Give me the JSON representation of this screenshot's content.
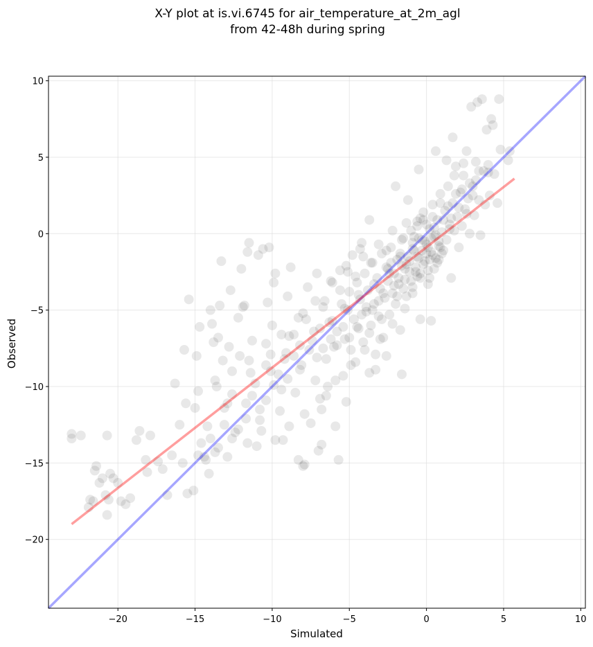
{
  "chart_data": {
    "type": "scatter",
    "title_lines": [
      "X-Y plot at is.vi.6745 for air_temperature_at_2m_agl",
      "from 42-48h during spring"
    ],
    "xlabel": "Simulated",
    "ylabel": "Observed",
    "xlim": [
      -24.5,
      10.3
    ],
    "ylim": [
      -24.5,
      10.3
    ],
    "xticks": [
      -20,
      -15,
      -10,
      -5,
      0,
      5,
      10
    ],
    "yticks": [
      -20,
      -15,
      -10,
      -5,
      0,
      5,
      10
    ],
    "xtick_labels": [
      "−20",
      "−15",
      "−10",
      "−5",
      "0",
      "5",
      "10"
    ],
    "ytick_labels": [
      "−20",
      "−15",
      "−10",
      "−5",
      "0",
      "5",
      "10"
    ],
    "grid": true,
    "colors": {
      "points": "#000000",
      "identity_line": "#0000ff",
      "fit_line": "#ff0000",
      "grid": "#d9d9d9"
    },
    "identity_line": {
      "x": [
        -24.5,
        10.3
      ],
      "y": [
        -24.5,
        10.3
      ]
    },
    "fit_line": {
      "x": [
        -23.0,
        5.7
      ],
      "y": [
        -19.0,
        3.6
      ]
    },
    "points": [
      [
        -23.0,
        -13.1
      ],
      [
        -23.0,
        -13.4
      ],
      [
        -22.4,
        -13.2
      ],
      [
        -21.8,
        -17.4
      ],
      [
        -21.6,
        -17.5
      ],
      [
        -21.9,
        -17.9
      ],
      [
        -21.4,
        -15.2
      ],
      [
        -21.5,
        -15.5
      ],
      [
        -21.2,
        -16.3
      ],
      [
        -21.0,
        -16.0
      ],
      [
        -20.8,
        -17.1
      ],
      [
        -20.6,
        -17.4
      ],
      [
        -20.7,
        -18.4
      ],
      [
        -20.7,
        -13.2
      ],
      [
        -20.5,
        -15.7
      ],
      [
        -20.3,
        -16.0
      ],
      [
        -20.0,
        -16.3
      ],
      [
        -19.8,
        -17.5
      ],
      [
        -19.5,
        -17.7
      ],
      [
        -19.2,
        -17.3
      ],
      [
        -18.8,
        -13.5
      ],
      [
        -18.6,
        -12.9
      ],
      [
        -18.2,
        -14.8
      ],
      [
        -18.1,
        -15.6
      ],
      [
        -17.9,
        -13.2
      ],
      [
        -17.4,
        -14.9
      ],
      [
        -17.1,
        -15.4
      ],
      [
        -16.8,
        -17.1
      ],
      [
        -16.5,
        -14.5
      ],
      [
        -16.3,
        -9.8
      ],
      [
        -16.0,
        -12.5
      ],
      [
        -15.8,
        -15.0
      ],
      [
        -15.7,
        -7.6
      ],
      [
        -15.6,
        -11.1
      ],
      [
        -15.5,
        -17.0
      ],
      [
        -15.4,
        -4.3
      ],
      [
        -15.1,
        -16.8
      ],
      [
        -15.0,
        -11.4
      ],
      [
        -14.9,
        -8.0
      ],
      [
        -14.8,
        -14.5
      ],
      [
        -14.7,
        -6.1
      ],
      [
        -14.6,
        -13.7
      ],
      [
        -14.3,
        -14.8
      ],
      [
        -14.2,
        -12.6
      ],
      [
        -14.1,
        -15.7
      ],
      [
        -14.0,
        -5.0
      ],
      [
        -13.9,
        -5.9
      ],
      [
        -13.8,
        -7.1
      ],
      [
        -13.7,
        -14.3
      ],
      [
        -13.6,
        -10.0
      ],
      [
        -13.5,
        -6.8
      ],
      [
        -13.4,
        -4.7
      ],
      [
        -13.2,
        -8.3
      ],
      [
        -13.1,
        -11.4
      ],
      [
        -12.9,
        -14.6
      ],
      [
        -12.8,
        -7.4
      ],
      [
        -12.7,
        -3.7
      ],
      [
        -12.6,
        -10.5
      ],
      [
        -12.4,
        -13.0
      ],
      [
        -12.2,
        -5.5
      ],
      [
        -12.1,
        -8.0
      ],
      [
        -11.9,
        -4.8
      ],
      [
        -11.7,
        -11.1
      ],
      [
        -11.6,
        -1.2
      ],
      [
        -11.5,
        -0.6
      ],
      [
        -11.3,
        -7.0
      ],
      [
        -11.1,
        -9.8
      ],
      [
        -11.0,
        -13.9
      ],
      [
        -10.8,
        -12.2
      ],
      [
        -10.6,
        -1.0
      ],
      [
        -10.4,
        -8.6
      ],
      [
        -10.3,
        -4.5
      ],
      [
        -10.2,
        -0.9
      ],
      [
        -10.0,
        -6.0
      ],
      [
        -9.8,
        -2.6
      ],
      [
        -9.6,
        -9.2
      ],
      [
        -9.5,
        -11.6
      ],
      [
        -9.3,
        -13.5
      ],
      [
        -9.1,
        -7.8
      ],
      [
        -9.0,
        -4.1
      ],
      [
        -8.8,
        -2.2
      ],
      [
        -8.6,
        -6.6
      ],
      [
        -8.5,
        -10.4
      ],
      [
        -8.3,
        -14.8
      ],
      [
        -8.2,
        -8.9
      ],
      [
        -8.0,
        -5.2
      ],
      [
        -7.9,
        -15.1
      ],
      [
        -7.7,
        -3.5
      ],
      [
        -7.5,
        -12.4
      ],
      [
        -7.4,
        -7.0
      ],
      [
        -7.2,
        -9.6
      ],
      [
        -7.1,
        -2.6
      ],
      [
        -7.0,
        -14.2
      ],
      [
        -6.9,
        -6.2
      ],
      [
        -6.8,
        -11.5
      ],
      [
        -6.6,
        -4.4
      ],
      [
        -6.5,
        -8.2
      ],
      [
        -6.4,
        -10.0
      ],
      [
        -6.2,
        -3.1
      ],
      [
        -6.1,
        -5.7
      ],
      [
        -6.0,
        -7.4
      ],
      [
        -5.9,
        -12.6
      ],
      [
        -5.8,
        -6.4
      ],
      [
        -5.7,
        -14.8
      ],
      [
        -5.6,
        -2.4
      ],
      [
        -5.5,
        -4.6
      ],
      [
        -5.4,
        -9.3
      ],
      [
        -5.3,
        -6.9
      ],
      [
        -5.2,
        -11.0
      ],
      [
        -5.1,
        -5.0
      ],
      [
        -5.0,
        -3.8
      ],
      [
        -4.9,
        -7.6
      ],
      [
        -4.8,
        -1.4
      ],
      [
        -4.7,
        -5.6
      ],
      [
        -4.6,
        -8.4
      ],
      [
        -4.5,
        -3.2
      ],
      [
        -4.4,
        -6.2
      ],
      [
        -4.3,
        -4.3
      ],
      [
        -4.2,
        -0.6
      ],
      [
        -4.1,
        -7.1
      ],
      [
        -4.0,
        -2.6
      ],
      [
        -3.9,
        -5.1
      ],
      [
        -3.8,
        -3.7
      ],
      [
        -3.7,
        -9.1
      ],
      [
        -3.6,
        -6.0
      ],
      [
        -3.5,
        -1.9
      ],
      [
        -3.4,
        -4.6
      ],
      [
        -3.3,
        -7.9
      ],
      [
        -3.2,
        -2.9
      ],
      [
        -3.1,
        -5.4
      ],
      [
        -3.0,
        -3.6
      ],
      [
        -2.9,
        -1.3
      ],
      [
        -2.8,
        -6.8
      ],
      [
        -2.7,
        -4.2
      ],
      [
        -2.6,
        -2.2
      ],
      [
        -2.5,
        -3.1
      ],
      [
        -2.4,
        -5.3
      ],
      [
        -2.3,
        -0.9
      ],
      [
        -2.2,
        -3.9
      ],
      [
        -2.1,
        -2.6
      ],
      [
        -2.0,
        -4.6
      ],
      [
        -1.9,
        -1.7
      ],
      [
        -1.8,
        -3.3
      ],
      [
        -1.7,
        -6.3
      ],
      [
        -1.6,
        -2.1
      ],
      [
        -1.5,
        -0.3
      ],
      [
        -1.4,
        -3.0
      ],
      [
        -1.3,
        -4.1
      ],
      [
        -1.2,
        -1.5
      ],
      [
        -1.1,
        -2.5
      ],
      [
        -1.0,
        0.2
      ],
      [
        -0.9,
        -3.5
      ],
      [
        -0.8,
        -1.1
      ],
      [
        -0.7,
        -2.2
      ],
      [
        -0.6,
        0.8
      ],
      [
        -0.5,
        -1.6
      ],
      [
        -0.4,
        -2.9
      ],
      [
        -0.3,
        -0.4
      ],
      [
        -0.2,
        1.4
      ],
      [
        -0.1,
        -1.8
      ],
      [
        0.0,
        -0.7
      ],
      [
        0.1,
        -2.4
      ],
      [
        0.2,
        0.3
      ],
      [
        0.3,
        -1.2
      ],
      [
        0.4,
        1.9
      ],
      [
        0.5,
        -0.2
      ],
      [
        0.6,
        -1.6
      ],
      [
        0.7,
        0.9
      ],
      [
        0.8,
        -0.8
      ],
      [
        0.9,
        2.6
      ],
      [
        1.0,
        0.1
      ],
      [
        1.1,
        -1.1
      ],
      [
        1.2,
        1.5
      ],
      [
        1.3,
        -0.4
      ],
      [
        1.4,
        3.1
      ],
      [
        1.5,
        0.6
      ],
      [
        1.6,
        -2.9
      ],
      [
        1.7,
        2.0
      ],
      [
        1.8,
        0.2
      ],
      [
        1.9,
        4.4
      ],
      [
        2.0,
        1.1
      ],
      [
        2.1,
        -0.9
      ],
      [
        2.2,
        2.7
      ],
      [
        2.3,
        0.5
      ],
      [
        2.4,
        3.8
      ],
      [
        2.5,
        1.6
      ],
      [
        2.6,
        5.4
      ],
      [
        2.7,
        2.3
      ],
      [
        2.8,
        0.0
      ],
      [
        2.9,
        8.3
      ],
      [
        3.0,
        3.1
      ],
      [
        3.1,
        1.2
      ],
      [
        3.2,
        4.7
      ],
      [
        3.3,
        8.6
      ],
      [
        3.4,
        2.2
      ],
      [
        3.5,
        -0.1
      ],
      [
        3.6,
        8.8
      ],
      [
        3.7,
        4.1
      ],
      [
        3.8,
        1.9
      ],
      [
        3.9,
        6.8
      ],
      [
        4.0,
        4.5
      ],
      [
        4.1,
        2.5
      ],
      [
        4.2,
        7.5
      ],
      [
        4.3,
        7.1
      ],
      [
        4.4,
        3.9
      ],
      [
        4.6,
        2.0
      ],
      [
        4.7,
        8.8
      ],
      [
        4.8,
        5.5
      ],
      [
        5.3,
        4.8
      ],
      [
        5.4,
        5.4
      ],
      [
        -0.4,
        -5.6
      ],
      [
        0.3,
        -5.7
      ],
      [
        -1.6,
        -9.2
      ],
      [
        -2.6,
        -8.0
      ],
      [
        -3.3,
        -8.9
      ],
      [
        -6.5,
        -10.6
      ],
      [
        -8.0,
        -15.2
      ],
      [
        -6.8,
        -13.8
      ],
      [
        -9.9,
        -3.2
      ],
      [
        -11.8,
        -4.7
      ],
      [
        -12.0,
        -2.3
      ],
      [
        -13.3,
        -1.8
      ],
      [
        -10.9,
        -1.4
      ],
      [
        -5.2,
        -2.1
      ],
      [
        -2.0,
        3.1
      ],
      [
        -1.2,
        2.2
      ],
      [
        -0.5,
        4.2
      ],
      [
        0.6,
        5.4
      ],
      [
        1.3,
        4.8
      ],
      [
        1.7,
        6.3
      ],
      [
        -3.7,
        0.9
      ],
      [
        -4.3,
        -1.0
      ],
      [
        -0.5,
        -0.3
      ],
      [
        0.1,
        -0.9
      ],
      [
        0.4,
        -1.4
      ],
      [
        0.8,
        -0.5
      ],
      [
        -0.2,
        -2.0
      ],
      [
        0.5,
        -2.3
      ],
      [
        -0.9,
        -1.0
      ],
      [
        -0.7,
        -2.5
      ],
      [
        0.2,
        -1.7
      ],
      [
        -0.3,
        -1.1
      ],
      [
        0.7,
        -1.9
      ],
      [
        1.0,
        -1.3
      ],
      [
        -1.1,
        -1.8
      ],
      [
        -1.4,
        -2.3
      ],
      [
        0.6,
        -0.1
      ],
      [
        -0.1,
        -0.5
      ],
      [
        -1.8,
        -2.9
      ],
      [
        -2.1,
        -3.4
      ],
      [
        -1.5,
        -3.6
      ],
      [
        -2.4,
        -2.6
      ],
      [
        -2.8,
        -3.9
      ],
      [
        -1.9,
        -4.1
      ],
      [
        -1.0,
        -3.1
      ],
      [
        -0.6,
        -2.8
      ],
      [
        -3.1,
        -4.4
      ],
      [
        -3.5,
        -5.0
      ],
      [
        -2.9,
        -5.6
      ],
      [
        -3.9,
        -4.8
      ],
      [
        -4.2,
        -5.3
      ],
      [
        -4.5,
        -6.1
      ],
      [
        -3.7,
        -6.5
      ],
      [
        -5.0,
        -6.8
      ],
      [
        -5.4,
        -6.1
      ],
      [
        -5.8,
        -7.3
      ],
      [
        -6.2,
        -6.9
      ],
      [
        -6.7,
        -7.5
      ],
      [
        -7.1,
        -8.1
      ],
      [
        -7.6,
        -7.6
      ],
      [
        -8.1,
        -8.6
      ],
      [
        -8.6,
        -8.0
      ],
      [
        -9.0,
        -9.5
      ],
      [
        -9.4,
        -10.2
      ],
      [
        -9.9,
        -9.9
      ],
      [
        -10.4,
        -10.9
      ],
      [
        -10.8,
        -11.5
      ],
      [
        -11.3,
        -10.6
      ],
      [
        -11.7,
        -12.1
      ],
      [
        -12.2,
        -12.8
      ],
      [
        -12.6,
        -13.4
      ],
      [
        -13.1,
        -12.5
      ],
      [
        -13.5,
        -14.0
      ],
      [
        -14.0,
        -13.4
      ],
      [
        -14.4,
        -14.6
      ],
      [
        -12.9,
        -11.1
      ],
      [
        -11.4,
        -9.1
      ],
      [
        -10.1,
        -7.9
      ],
      [
        -8.9,
        -6.7
      ],
      [
        -7.8,
        -5.6
      ],
      [
        -6.7,
        -4.8
      ],
      [
        -5.6,
        -3.7
      ],
      [
        -4.6,
        -2.8
      ],
      [
        -3.6,
        -1.9
      ],
      [
        -2.6,
        -1.1
      ],
      [
        -1.6,
        -0.4
      ],
      [
        -0.6,
        0.5
      ],
      [
        0.4,
        1.1
      ],
      [
        1.4,
        1.8
      ],
      [
        2.3,
        2.9
      ],
      [
        3.2,
        3.5
      ],
      [
        4.0,
        4.0
      ],
      [
        1.9,
        2.6
      ],
      [
        2.8,
        3.3
      ],
      [
        1.1,
        0.9
      ],
      [
        0.0,
        0.6
      ],
      [
        -0.8,
        -0.2
      ],
      [
        1.6,
        1.0
      ],
      [
        2.1,
        1.7
      ],
      [
        0.9,
        2.0
      ],
      [
        -0.4,
        1.0
      ],
      [
        1.8,
        3.8
      ],
      [
        3.0,
        2.5
      ],
      [
        2.6,
        1.3
      ],
      [
        3.4,
        4.1
      ],
      [
        2.4,
        4.6
      ],
      [
        -1.4,
        -4.9
      ],
      [
        -2.2,
        -5.9
      ],
      [
        -3.0,
        -6.9
      ],
      [
        -4.0,
        -7.6
      ],
      [
        -4.9,
        -8.6
      ],
      [
        -5.9,
        -9.6
      ],
      [
        -6.9,
        -10.8
      ],
      [
        -7.9,
        -11.8
      ],
      [
        -8.9,
        -12.6
      ],
      [
        -9.8,
        -13.5
      ],
      [
        -10.7,
        -12.9
      ],
      [
        -11.6,
        -13.7
      ],
      [
        -7.2,
        -4.4
      ],
      [
        -8.3,
        -5.5
      ],
      [
        -9.4,
        -6.6
      ],
      [
        -10.4,
        -7.2
      ],
      [
        -11.5,
        -8.3
      ],
      [
        -12.6,
        -9.0
      ],
      [
        -13.7,
        -9.6
      ],
      [
        -14.8,
        -10.3
      ],
      [
        -6.1,
        -3.2
      ],
      [
        -5.1,
        -2.5
      ],
      [
        -4.1,
        -1.5
      ],
      [
        -3.1,
        -0.7
      ],
      [
        -2.2,
        0.2
      ],
      [
        -1.3,
        0.7
      ],
      [
        -4.4,
        -4.0
      ],
      [
        -5.3,
        -4.9
      ],
      [
        -6.3,
        -5.8
      ],
      [
        -7.3,
        -6.4
      ],
      [
        -8.2,
        -7.3
      ],
      [
        -9.2,
        -8.2
      ],
      [
        -10.1,
        -9.0
      ],
      [
        -3.4,
        -3.3
      ],
      [
        -2.5,
        -2.3
      ],
      [
        -1.7,
        -1.3
      ],
      [
        -0.9,
        -0.6
      ],
      [
        0.3,
        -0.3
      ],
      [
        0.9,
        -0.9
      ],
      [
        1.5,
        0.3
      ],
      [
        -0.2,
        0.9
      ],
      [
        -0.6,
        -1.5
      ],
      [
        0.0,
        -1.3
      ],
      [
        0.5,
        0.4
      ],
      [
        0.8,
        -1.7
      ],
      [
        -0.4,
        -2.6
      ],
      [
        0.2,
        -2.9
      ],
      [
        -1.3,
        -2.0
      ],
      [
        -1.7,
        -1.5
      ],
      [
        -2.3,
        -1.9
      ],
      [
        -0.9,
        -3.9
      ],
      [
        0.1,
        -3.3
      ]
    ]
  }
}
